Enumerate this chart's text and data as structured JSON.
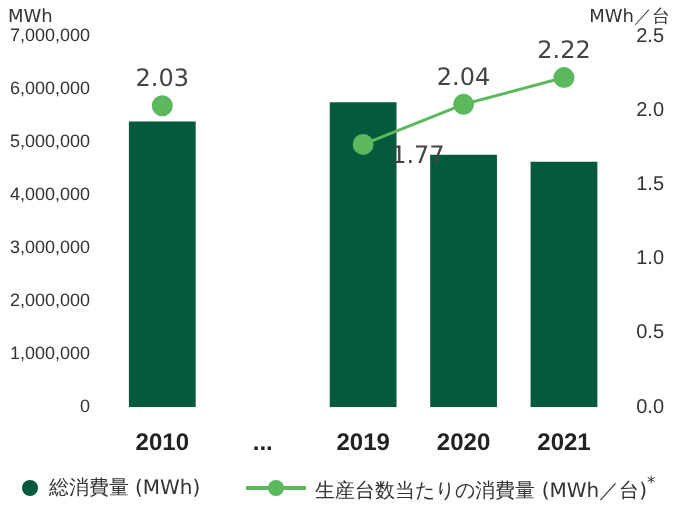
{
  "chart_data": {
    "type": "bar",
    "ylabel": "MWh",
    "y2label": "MWh／台",
    "categories": [
      "2010",
      "...",
      "2019",
      "2020",
      "2021"
    ],
    "series": [
      {
        "name": "総消費量 (MWh)",
        "color": "#065a3c",
        "values": [
          5390000,
          null,
          5750000,
          4760000,
          4630000
        ]
      },
      {
        "name": "生産台数当たりの消費量 (MWh／台)$^{*}$",
        "type": "line",
        "axis": "y2",
        "color": "#5cb85c",
        "marker": "circle",
        "values": [
          2.03,
          null,
          1.77,
          2.04,
          2.22
        ],
        "value_labels": [
          "2.03",
          null,
          "1.77",
          "2.04",
          "2.22"
        ]
      }
    ],
    "ylim": [
      0,
      7000000
    ],
    "yticks": [
      {
        "value": 0,
        "label": "0"
      },
      {
        "value": 1000000,
        "label": "1,000,000"
      },
      {
        "value": 2000000,
        "label": "2,000,000"
      },
      {
        "value": 3000000,
        "label": "3,000,000"
      },
      {
        "value": 4000000,
        "label": "4,000,000"
      },
      {
        "value": 5000000,
        "label": "5,000,000"
      },
      {
        "value": 6000000,
        "label": "6,000,000"
      },
      {
        "value": 7000000,
        "label": "7,000,000"
      }
    ],
    "y2lim": [
      0,
      2.5
    ],
    "y2ticks": [
      {
        "value": 0,
        "label": "0.0"
      },
      {
        "value": 0.5,
        "label": "0.5"
      },
      {
        "value": 1,
        "label": "1.0"
      },
      {
        "value": 1.5,
        "label": "1.5"
      },
      {
        "value": 2,
        "label": "2.0"
      },
      {
        "value": 2.5,
        "label": "2.5"
      }
    ],
    "grid": false,
    "legend": "bottom"
  }
}
